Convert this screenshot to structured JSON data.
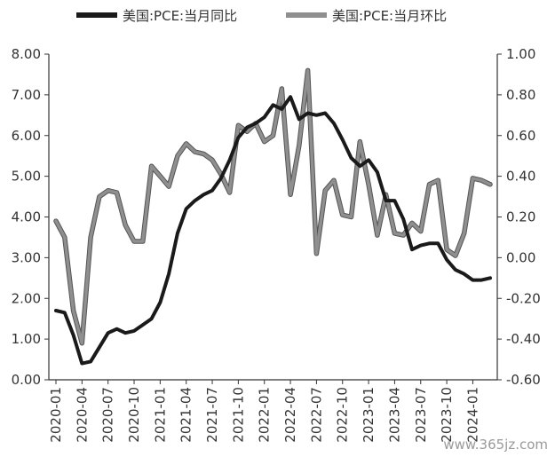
{
  "chart_data": {
    "type": "line",
    "title": "",
    "x": [
      "2020-01",
      "2020-02",
      "2020-03",
      "2020-04",
      "2020-05",
      "2020-06",
      "2020-07",
      "2020-08",
      "2020-09",
      "2020-10",
      "2020-11",
      "2020-12",
      "2021-01",
      "2021-02",
      "2021-03",
      "2021-04",
      "2021-05",
      "2021-06",
      "2021-07",
      "2021-08",
      "2021-09",
      "2021-10",
      "2021-11",
      "2021-12",
      "2022-01",
      "2022-02",
      "2022-03",
      "2022-04",
      "2022-05",
      "2022-06",
      "2022-07",
      "2022-08",
      "2022-09",
      "2022-10",
      "2022-11",
      "2022-12",
      "2023-01",
      "2023-02",
      "2023-03",
      "2023-04",
      "2023-05",
      "2023-06",
      "2023-07",
      "2023-08",
      "2023-09",
      "2023-10",
      "2023-11",
      "2023-12",
      "2024-01",
      "2024-02",
      "2024-03"
    ],
    "x_tick_labels": [
      "2020-01",
      "2020-04",
      "2020-07",
      "2020-10",
      "2021-01",
      "2021-04",
      "2021-07",
      "2021-10",
      "2022-01",
      "2022-04",
      "2022-07",
      "2022-10",
      "2023-01",
      "2023-04",
      "2023-07",
      "2023-10",
      "2024-01"
    ],
    "series": [
      {
        "name": "美国:PCE:当月同比",
        "axis": "left",
        "color": "#1a1a1a",
        "values": [
          1.7,
          1.65,
          1.1,
          0.4,
          0.45,
          0.8,
          1.15,
          1.25,
          1.15,
          1.2,
          1.35,
          1.5,
          1.9,
          2.6,
          3.6,
          4.2,
          4.4,
          4.55,
          4.65,
          4.95,
          5.4,
          5.95,
          6.2,
          6.3,
          6.45,
          6.75,
          6.65,
          6.95,
          6.4,
          6.55,
          6.5,
          6.55,
          6.3,
          5.9,
          5.45,
          5.25,
          5.4,
          5.1,
          4.4,
          4.4,
          3.95,
          3.2,
          3.3,
          3.35,
          3.35,
          2.95,
          2.7,
          2.6,
          2.45,
          2.45,
          2.5
        ]
      },
      {
        "name": "美国:PCE:当月环比",
        "axis": "right",
        "color": "#8f8f8f",
        "values": [
          0.18,
          0.1,
          -0.26,
          -0.42,
          0.1,
          0.3,
          0.33,
          0.32,
          0.16,
          0.08,
          0.08,
          0.45,
          0.4,
          0.35,
          0.5,
          0.56,
          0.52,
          0.51,
          0.48,
          0.41,
          0.32,
          0.65,
          0.62,
          0.66,
          0.57,
          0.6,
          0.83,
          0.31,
          0.55,
          0.92,
          0.02,
          0.33,
          0.38,
          0.21,
          0.2,
          0.57,
          0.36,
          0.11,
          0.31,
          0.12,
          0.11,
          0.17,
          0.13,
          0.36,
          0.38,
          0.04,
          0.01,
          0.12,
          0.39,
          0.38,
          0.36
        ]
      }
    ],
    "y_left": {
      "min": 0,
      "max": 8,
      "step": 1,
      "tick_labels": [
        "0.00",
        "1.00",
        "2.00",
        "3.00",
        "4.00",
        "5.00",
        "6.00",
        "7.00",
        "8.00"
      ]
    },
    "y_right": {
      "min": -0.6,
      "max": 1.0,
      "step": 0.2,
      "tick_labels": [
        "-0.60",
        "-0.40",
        "-0.20",
        "0.00",
        "0.20",
        "0.40",
        "0.60",
        "0.80",
        "1.00"
      ]
    },
    "grid": false,
    "legend": "top-center"
  },
  "watermark": "www.365jz.com"
}
